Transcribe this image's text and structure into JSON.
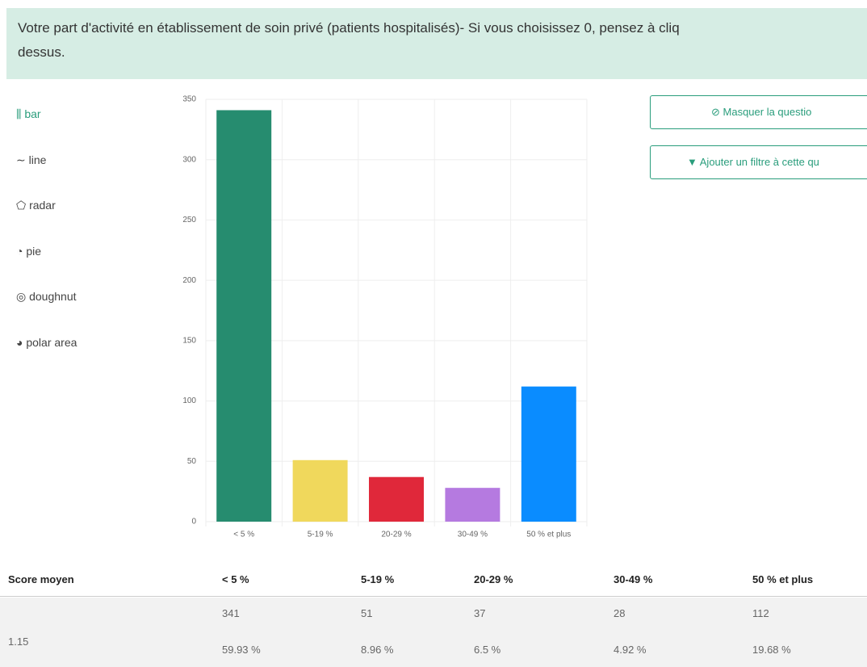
{
  "header": {
    "title_lines": [
      "Votre part d'activité en établissement de soin privé (patients hospitalisés)- Si vous choisissez 0, pensez à cliq",
      "dessus."
    ]
  },
  "chart_types": [
    "bar",
    "line",
    "radar",
    "pie",
    "doughnut",
    "polar area"
  ],
  "buttons": [
    "Masquer la questio",
    "Ajouter un filtre à cette qu"
  ],
  "chart_data": {
    "type": "bar",
    "categories": [
      "< 5 %",
      "5-19 %",
      "20-29 %",
      "30-49 %",
      "50 % et plus"
    ],
    "values": [
      341,
      51,
      37,
      28,
      112
    ],
    "colors": [
      "#268c6f",
      "#f0d85c",
      "#e0283a",
      "#b57ae0",
      "#0a8cff"
    ],
    "ylim": [
      0,
      350
    ],
    "yticks": [
      0,
      50,
      100,
      150,
      200,
      250,
      300,
      350
    ],
    "grid": true
  },
  "table": {
    "headers": [
      "Score moyen",
      "< 5 %",
      "5-19 %",
      "20-29 %",
      "30-49 %",
      "50 % et plus"
    ],
    "score": "1.15",
    "counts": [
      "341",
      "51",
      "37",
      "28",
      "112"
    ],
    "percents": [
      "59.93 %",
      "8.96 %",
      "6.5 %",
      "4.92 %",
      "19.68 %"
    ]
  }
}
